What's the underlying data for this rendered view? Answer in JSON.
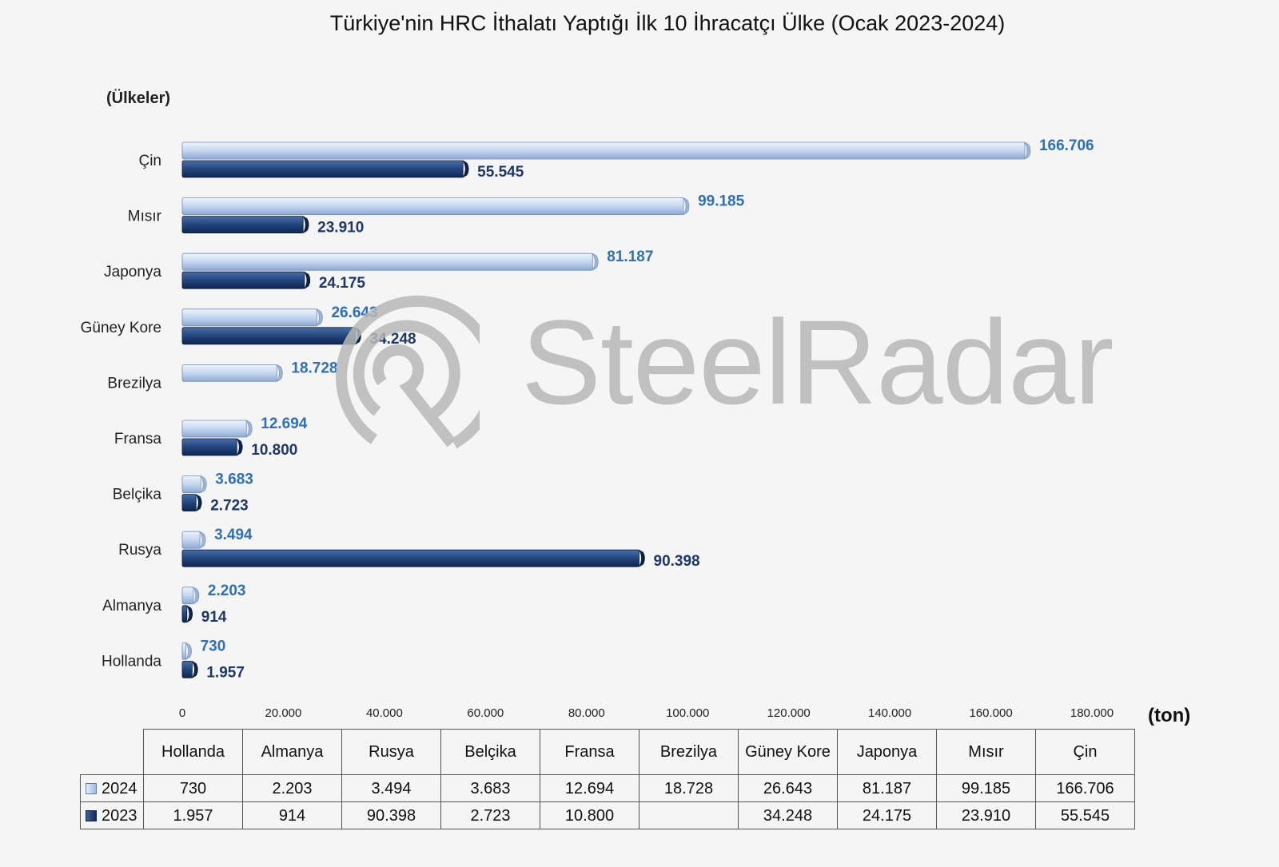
{
  "chart_data": {
    "type": "bar",
    "orientation": "horizontal",
    "title": "Türkiye'nin HRC İthalatı Yaptığı İlk 10 İhracatçı Ülke (Ocak 2023-2024)",
    "ylabel": "(Ülkeler)",
    "xlabel": "(ton)",
    "categories": [
      "Çin",
      "Mısır",
      "Japonya",
      "Güney Kore",
      "Brezilya",
      "Fransa",
      "Belçika",
      "Rusya",
      "Almanya",
      "Hollanda"
    ],
    "series": [
      {
        "name": "2024",
        "values": [
          166706,
          99185,
          81187,
          26643,
          18728,
          12694,
          3683,
          3494,
          2203,
          730
        ],
        "labels": [
          "166.706",
          "99.185",
          "81.187",
          "26.643",
          "18.728",
          "12.694",
          "3.683",
          "3.494",
          "2.203",
          "730"
        ],
        "color": "#bcd0ee"
      },
      {
        "name": "2023",
        "values": [
          55545,
          23910,
          24175,
          34248,
          null,
          10800,
          2723,
          90398,
          914,
          1957
        ],
        "labels": [
          "55.545",
          "23.910",
          "24.175",
          "34.248",
          "",
          "10.800",
          "2.723",
          "90.398",
          "914",
          "1.957"
        ],
        "color": "#1f3d73"
      }
    ],
    "xlim": [
      0,
      180000
    ],
    "x_ticks": [
      0,
      20000,
      40000,
      60000,
      80000,
      100000,
      120000,
      140000,
      160000,
      180000
    ],
    "x_tick_labels": [
      "0",
      "20.000",
      "40.000",
      "60.000",
      "80.000",
      "100.000",
      "120.000",
      "140.000",
      "160.000",
      "180.000"
    ],
    "grid": false,
    "label_colors": {
      "2024": "#2e6fb5",
      "2023": "#1f3764"
    }
  },
  "table": {
    "columns": [
      "Hollanda",
      "Almanya",
      "Rusya",
      "Belçika",
      "Fransa",
      "Brezilya",
      "Güney Kore",
      "Japonya",
      "Mısır",
      "Çin"
    ],
    "rows": [
      {
        "label": "2024",
        "values": [
          "730",
          "2.203",
          "3.494",
          "3.683",
          "12.694",
          "18.728",
          "26.643",
          "81.187",
          "99.185",
          "166.706"
        ]
      },
      {
        "label": "2023",
        "values": [
          "1.957",
          "914",
          "90.398",
          "2.723",
          "10.800",
          "",
          "34.248",
          "24.175",
          "23.910",
          "55.545"
        ]
      }
    ]
  },
  "watermark": {
    "text": "SteelRadar"
  }
}
